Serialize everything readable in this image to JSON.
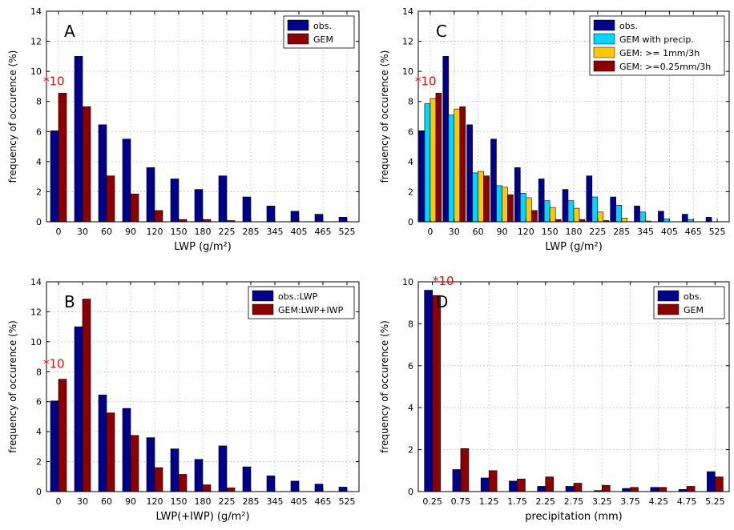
{
  "chart_data": [
    {
      "type": "bar",
      "panel_label": "A",
      "annotation": "*10",
      "categories": [
        "0",
        "30",
        "60",
        "90",
        "120",
        "150",
        "180",
        "225",
        "285",
        "345",
        "405",
        "465",
        "525"
      ],
      "series": [
        {
          "name": "obs.",
          "color": "#00008b",
          "values": [
            6.05,
            11.0,
            6.45,
            5.5,
            3.6,
            2.85,
            2.15,
            3.05,
            1.65,
            1.05,
            0.7,
            0.5,
            0.3
          ]
        },
        {
          "name": "GEM",
          "color": "#8b0000",
          "values": [
            8.55,
            7.65,
            3.05,
            1.85,
            0.75,
            0.15,
            0.15,
            0.08,
            0,
            0,
            0,
            0,
            0
          ]
        }
      ],
      "xlabel": "LWP (g/m²)",
      "ylabel": "frequency of occurence (%)",
      "ylim": [
        0,
        14
      ],
      "yticks": [
        "0",
        "2",
        "4",
        "6",
        "8",
        "10",
        "12",
        "14"
      ],
      "grid": true,
      "legend": "top-right"
    },
    {
      "type": "bar",
      "panel_label": "C",
      "annotation": "*10",
      "categories": [
        "0",
        "30",
        "60",
        "90",
        "120",
        "150",
        "180",
        "225",
        "285",
        "345",
        "405",
        "465",
        "525"
      ],
      "series": [
        {
          "name": "obs.",
          "color": "#00008b",
          "values": [
            6.05,
            11.0,
            6.45,
            5.5,
            3.6,
            2.85,
            2.15,
            3.05,
            1.65,
            1.05,
            0.7,
            0.5,
            0.3
          ]
        },
        {
          "name": "GEM with precip.",
          "color": "#00d5ff",
          "values": [
            7.85,
            7.1,
            3.25,
            2.4,
            1.9,
            1.4,
            1.4,
            1.65,
            1.1,
            0.65,
            0.2,
            0.15,
            0
          ]
        },
        {
          "name": "GEM: >= 1mm/3h",
          "color": "#ffc800",
          "values": [
            8.2,
            7.5,
            3.35,
            2.3,
            1.6,
            0.95,
            0.9,
            0.65,
            0.25,
            0.05,
            0,
            0,
            0
          ]
        },
        {
          "name": "GEM: >=0.25mm/3h",
          "color": "#8b0000",
          "values": [
            8.55,
            7.65,
            3.05,
            1.8,
            0.75,
            0.15,
            0.15,
            0.08,
            0,
            0,
            0,
            0,
            0
          ]
        }
      ],
      "xlabel": "LWP (g/m²)",
      "ylabel": "frequency of occurence (%)",
      "ylim": [
        0,
        14
      ],
      "yticks": [
        "0",
        "2",
        "4",
        "6",
        "8",
        "10",
        "12",
        "14"
      ],
      "grid": true,
      "legend": "top-right"
    },
    {
      "type": "bar",
      "panel_label": "B",
      "annotation": "*10",
      "categories": [
        "0",
        "30",
        "60",
        "90",
        "120",
        "150",
        "180",
        "225",
        "285",
        "345",
        "405",
        "465",
        "525"
      ],
      "series": [
        {
          "name": "obs.:LWP",
          "color": "#00008b",
          "values": [
            6.05,
            11.0,
            6.45,
            5.55,
            3.6,
            2.85,
            2.15,
            3.05,
            1.65,
            1.05,
            0.7,
            0.5,
            0.3
          ]
        },
        {
          "name": "GEM:LWP+IWP",
          "color": "#8b0000",
          "values": [
            7.5,
            12.85,
            5.25,
            3.75,
            1.6,
            1.15,
            0.45,
            0.25,
            0,
            0,
            0,
            0,
            0
          ]
        }
      ],
      "xlabel": "LWP(+IWP) (g/m²)",
      "ylabel": "frequency of occurence (%)",
      "ylim": [
        0,
        14
      ],
      "yticks": [
        "0",
        "2",
        "4",
        "6",
        "8",
        "10",
        "12",
        "14"
      ],
      "grid": true,
      "legend": "top-right"
    },
    {
      "type": "bar",
      "panel_label": "D",
      "annotation": "*10",
      "categories": [
        "0.25",
        "0.75",
        "1.25",
        "1.75",
        "2.25",
        "2.75",
        "3.25",
        "3.75",
        "4.25",
        "4.75",
        "5.25"
      ],
      "series": [
        {
          "name": "obs.",
          "color": "#00008b",
          "values": [
            9.6,
            1.05,
            0.65,
            0.5,
            0.25,
            0.25,
            0.05,
            0.15,
            0.2,
            0.1,
            0.95
          ]
        },
        {
          "name": "GEM",
          "color": "#8b0000",
          "values": [
            9.35,
            2.05,
            1.0,
            0.6,
            0.7,
            0.4,
            0.3,
            0.2,
            0.2,
            0.25,
            0.7
          ]
        }
      ],
      "xlabel": "precipitation (mm)",
      "ylabel": "frequency of occurence (%)",
      "ylim": [
        0,
        10
      ],
      "yticks": [
        "0",
        "2",
        "4",
        "6",
        "8",
        "10"
      ],
      "grid": true,
      "legend": "top-right"
    }
  ]
}
